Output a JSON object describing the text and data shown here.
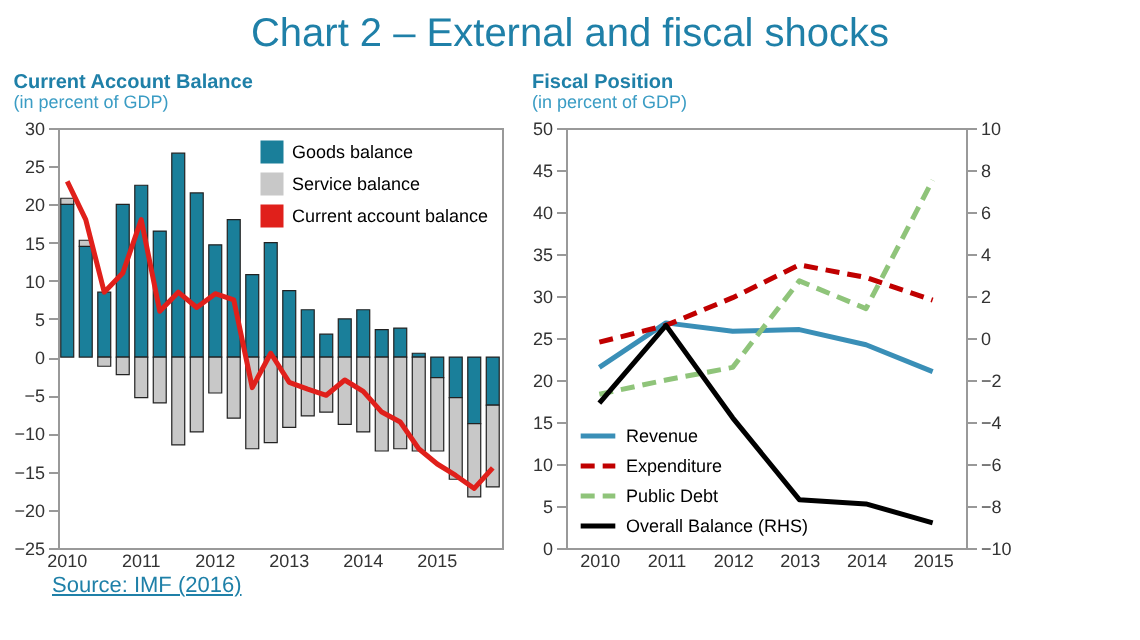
{
  "chart_data": [
    {
      "type": "bar",
      "title": "Current Account  Balance",
      "subtitle": "(in percent of GDP)",
      "annotations": [
        "Chart 2 – External and fiscal shocks",
        "Source: IMF (2016)"
      ],
      "categories": [
        "2010",
        null,
        null,
        null,
        "2011",
        null,
        null,
        null,
        "2012",
        null,
        null,
        null,
        "2013",
        null,
        null,
        null,
        "2014",
        null,
        null,
        null,
        "2015",
        null,
        null,
        null
      ],
      "stacked": true,
      "ylim": [
        -25,
        30
      ],
      "yticks": [
        -25,
        -20,
        -15,
        -10,
        -5,
        0,
        5,
        10,
        15,
        20,
        25,
        30
      ],
      "grid": false,
      "legend": "top right",
      "series": [
        {
          "name": "Goods balance",
          "color": "#1a7f9a",
          "values": [
            20,
            14.5,
            8.5,
            20,
            22.5,
            16.5,
            26.7,
            21.5,
            14.7,
            18,
            10.8,
            15,
            8.7,
            6.2,
            3,
            5,
            6.2,
            3.6,
            3.8,
            0.5,
            -2.7,
            -5.3,
            -8.7,
            -6.3
          ]
        },
        {
          "name": "Service balance",
          "color": "#c8c8c8",
          "values": [
            0.8,
            0.8,
            -1.2,
            -2.3,
            -5.3,
            -6,
            -11.5,
            -9.8,
            -4.7,
            -8,
            -12,
            -11.2,
            -9.2,
            -7.7,
            -7.2,
            -8.8,
            -9.8,
            -12.3,
            -12,
            -12.3,
            -9.6,
            -10.7,
            -9.6,
            -10.7
          ]
        },
        {
          "name": "Current account balance",
          "type": "line",
          "color": "#e0201b",
          "values": [
            23,
            18,
            8.5,
            11,
            18,
            6,
            8.5,
            6.5,
            8.3,
            7.5,
            -4,
            0.5,
            -3.3,
            -4.2,
            -5,
            -3,
            -4.5,
            -7.2,
            -8.5,
            -12,
            -14,
            -15.5,
            -17.2,
            -14.5
          ]
        }
      ]
    },
    {
      "type": "line",
      "title": "Fiscal Position",
      "subtitle": "(in percent of GDP)",
      "categories": [
        "2010",
        "2011",
        "2012",
        "2013",
        "2014",
        "2015"
      ],
      "ylim": [
        0,
        50
      ],
      "yticks": [
        0,
        5,
        10,
        15,
        20,
        25,
        30,
        35,
        40,
        45,
        50
      ],
      "y2lim": [
        -10,
        10
      ],
      "y2ticks": [
        -10,
        -8,
        -6,
        -4,
        -2,
        0,
        2,
        4,
        6,
        8,
        10
      ],
      "grid": false,
      "legend": "bottom left",
      "series": [
        {
          "name": "Revenue",
          "color": "#3a8fb7",
          "line_style": "solid",
          "values": [
            21.5,
            26.8,
            25.8,
            26,
            24.2,
            21
          ]
        },
        {
          "name": "Expenditure",
          "color": "#c00000",
          "line_style": "dashed",
          "values": [
            24.5,
            26.5,
            29.8,
            33.7,
            32.2,
            29.5
          ]
        },
        {
          "name": "Public Debt",
          "color": "#8fc47a",
          "line_style": "dashed",
          "values": [
            18.3,
            20,
            21.5,
            31.8,
            28.5,
            43.8
          ]
        },
        {
          "name": "Overall Balance (RHS)",
          "color": "#000000",
          "line_style": "solid",
          "axis": "y2",
          "values": [
            -3.1,
            0.6,
            -3.8,
            -7.7,
            -7.9,
            -8.8
          ]
        }
      ]
    }
  ]
}
